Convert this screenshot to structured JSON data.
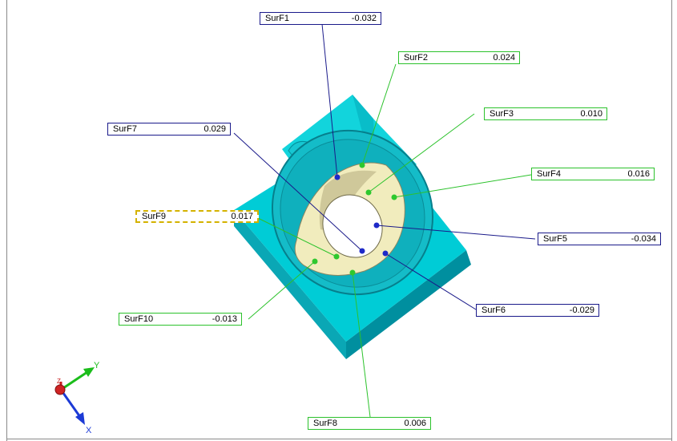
{
  "labels": [
    {
      "id": "SurF1",
      "name": "SurF1",
      "value": "-0.032",
      "status": "blue"
    },
    {
      "id": "SurF2",
      "name": "SurF2",
      "value": "0.024",
      "status": "green"
    },
    {
      "id": "SurF3",
      "name": "SurF3",
      "value": "0.010",
      "status": "green"
    },
    {
      "id": "SurF4",
      "name": "SurF4",
      "value": "0.016",
      "status": "green"
    },
    {
      "id": "SurF5",
      "name": "SurF5",
      "value": "-0.034",
      "status": "blue"
    },
    {
      "id": "SurF6",
      "name": "SurF6",
      "value": "-0.029",
      "status": "blue"
    },
    {
      "id": "SurF7",
      "name": "SurF7",
      "value": "0.029",
      "status": "blue"
    },
    {
      "id": "SurF8",
      "name": "SurF8",
      "value": "0.006",
      "status": "green"
    },
    {
      "id": "SurF9",
      "name": "SurF9",
      "value": "0.017",
      "status": "selected"
    },
    {
      "id": "SurF10",
      "name": "SurF10",
      "value": "-0.013",
      "status": "green"
    }
  ],
  "axes": {
    "x": "X",
    "y": "Y",
    "z": "Z"
  },
  "colors": {
    "part": "#00c8d2",
    "part_dark": "#0098a8",
    "bore": "#f2eec2",
    "in_tolerance": "#2cc22c",
    "out_tolerance": "#1a1a8a",
    "selected": "#d4b200"
  }
}
